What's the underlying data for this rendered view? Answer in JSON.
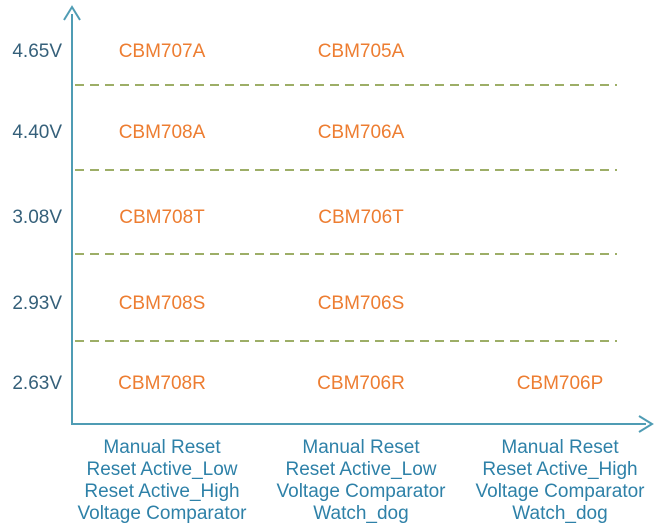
{
  "colors": {
    "background": "#ffffff",
    "axis": "#4F9CB4",
    "voltage_label": "#35607A",
    "part_label": "#ED7D31",
    "feature_label": "#2E81A8",
    "dashed_line": "#9DAE67"
  },
  "chart_data": {
    "type": "table",
    "title": "",
    "xlabel": "",
    "ylabel": "",
    "y_axis_tick_labels": [
      "4.65V",
      "4.40V",
      "3.08V",
      "2.93V",
      "2.63V"
    ],
    "grid": "horizontal-dashed-separators",
    "legend": "none",
    "rows": [
      {
        "voltage": "4.65V",
        "parts": [
          "CBM707A",
          "CBM705A",
          null
        ]
      },
      {
        "voltage": "4.40V",
        "parts": [
          "CBM708A",
          "CBM706A",
          null
        ]
      },
      {
        "voltage": "3.08V",
        "parts": [
          "CBM708T",
          "CBM706T",
          null
        ]
      },
      {
        "voltage": "2.93V",
        "parts": [
          "CBM708S",
          "CBM706S",
          null
        ]
      },
      {
        "voltage": "2.63V",
        "parts": [
          "CBM708R",
          "CBM706R",
          "CBM706P"
        ]
      }
    ],
    "columns": [
      {
        "features": [
          "Manual Reset",
          "Reset Active_Low",
          "Reset Active_High",
          "Voltage Comparator"
        ]
      },
      {
        "features": [
          "Manual Reset",
          "Reset Active_Low",
          "Voltage Comparator",
          "Watch_dog"
        ]
      },
      {
        "features": [
          "Manual Reset",
          "Reset Active_High",
          "Voltage Comparator",
          "Watch_dog"
        ]
      }
    ]
  }
}
